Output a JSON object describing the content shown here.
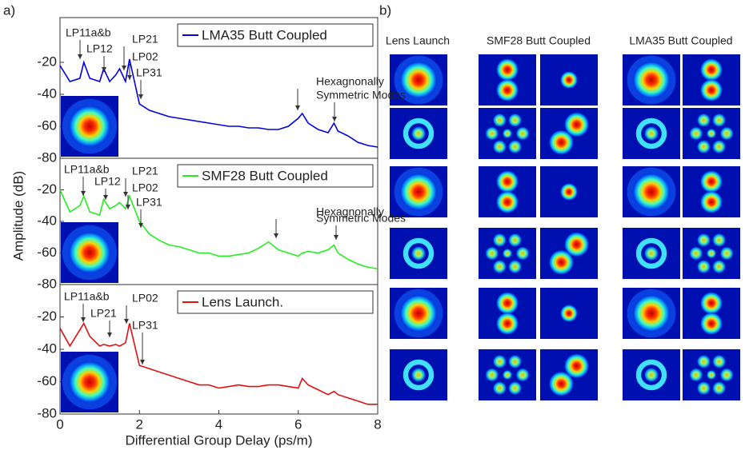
{
  "chart_data": [
    {
      "type": "line",
      "panel_label": "a)",
      "legend": "upper right",
      "xlim": [
        0,
        8
      ],
      "ylim": [
        -80,
        8
      ],
      "yticks": [
        -80,
        -60,
        -40,
        -20
      ],
      "annotations": [
        "LP11a&b",
        "LP12",
        "LP21",
        "LP02",
        "LP31",
        "Hexagnonally",
        "Symmetric Modes"
      ],
      "x": [
        0,
        0.25,
        0.5,
        0.6,
        0.75,
        1,
        1.1,
        1.25,
        1.4,
        1.5,
        1.65,
        1.75,
        2,
        2.25,
        2.5,
        2.75,
        3,
        3.25,
        3.5,
        3.75,
        4,
        4.25,
        4.5,
        4.75,
        5,
        5.25,
        5.5,
        5.75,
        6,
        6.1,
        6.25,
        6.5,
        6.75,
        6.9,
        7,
        7.25,
        7.5,
        7.75,
        8
      ],
      "series": [
        {
          "name": "LMA35 Butt Coupled",
          "color": "#0000e0",
          "values": [
            -22,
            -32,
            -30,
            -20,
            -30,
            -32,
            -24,
            -32,
            -28,
            -24,
            -32,
            -18,
            -46,
            -50,
            -52,
            -54,
            -55,
            -56,
            -57,
            -58,
            -59,
            -60,
            -60,
            -61,
            -61,
            -62,
            -62,
            -60,
            -55,
            -52,
            -58,
            -62,
            -64,
            -58,
            -63,
            -66,
            -70,
            -72,
            -73
          ]
        }
      ]
    },
    {
      "type": "line",
      "y_label": "Amplitude (dB)",
      "legend": "upper right",
      "xlim": [
        0,
        8
      ],
      "ylim": [
        -80,
        0
      ],
      "yticks": [
        -80,
        -60,
        -40,
        -20
      ],
      "annotations": [
        "LP11a&b",
        "LP12",
        "LP21",
        "LP02",
        "LP31",
        "Hexagnonally",
        "Symmetric Modes"
      ],
      "x": [
        0,
        0.25,
        0.5,
        0.6,
        0.75,
        1,
        1.1,
        1.25,
        1.4,
        1.5,
        1.65,
        1.75,
        2,
        2.25,
        2.5,
        2.75,
        3,
        3.25,
        3.5,
        3.75,
        4,
        4.25,
        4.5,
        4.75,
        5,
        5.25,
        5.5,
        5.75,
        6,
        6.1,
        6.25,
        6.5,
        6.75,
        6.9,
        7,
        7.25,
        7.5,
        7.75,
        8
      ],
      "series": [
        {
          "name": "SMF28 Butt Coupled",
          "color": "#22ee22",
          "values": [
            -20,
            -34,
            -30,
            -24,
            -34,
            -36,
            -26,
            -32,
            -30,
            -28,
            -32,
            -24,
            -40,
            -48,
            -52,
            -55,
            -56,
            -58,
            -60,
            -60,
            -62,
            -62,
            -61,
            -60,
            -57,
            -53,
            -58,
            -60,
            -62,
            -60,
            -59,
            -60,
            -58,
            -55,
            -60,
            -64,
            -67,
            -69,
            -70
          ]
        }
      ]
    },
    {
      "type": "line",
      "x_label": "Differential Group Delay (ps/m)",
      "legend": "upper right",
      "xlim": [
        0,
        8
      ],
      "xticks": [
        0,
        2,
        4,
        6,
        8
      ],
      "ylim": [
        -80,
        0
      ],
      "yticks": [
        -80,
        -60,
        -40,
        -20
      ],
      "annotations": [
        "LP11a&b",
        "LP21",
        "LP02",
        "LP31"
      ],
      "x": [
        0,
        0.25,
        0.5,
        0.6,
        0.75,
        1,
        1.1,
        1.25,
        1.4,
        1.5,
        1.65,
        1.75,
        2,
        2.25,
        2.5,
        2.75,
        3,
        3.25,
        3.5,
        3.75,
        4,
        4.25,
        4.5,
        4.75,
        5,
        5.25,
        5.5,
        5.75,
        6,
        6.1,
        6.25,
        6.5,
        6.75,
        6.9,
        7,
        7.25,
        7.5,
        7.75,
        8
      ],
      "series": [
        {
          "name": "Lens Launch.",
          "color": "#e01010",
          "values": [
            -27,
            -38,
            -28,
            -24,
            -32,
            -38,
            -37,
            -38,
            -37,
            -38,
            -36,
            -24,
            -50,
            -52,
            -54,
            -56,
            -58,
            -60,
            -62,
            -62,
            -64,
            -63,
            -62,
            -63,
            -63,
            -62,
            -62,
            -63,
            -64,
            -58,
            -62,
            -65,
            -68,
            -66,
            -68,
            -70,
            -72,
            -74,
            -74
          ]
        }
      ]
    }
  ],
  "figure_b": {
    "label": "b)",
    "columns": [
      "Lens Launch",
      "SMF28 Butt Coupled",
      "LMA35 Butt Coupled"
    ]
  }
}
